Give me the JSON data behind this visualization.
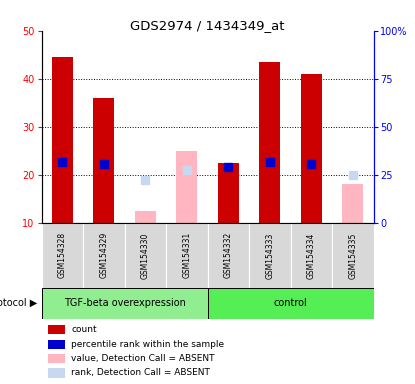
{
  "title": "GDS2974 / 1434349_at",
  "samples": [
    "GSM154328",
    "GSM154329",
    "GSM154330",
    "GSM154331",
    "GSM154332",
    "GSM154333",
    "GSM154334",
    "GSM154335"
  ],
  "present_count": [
    44.5,
    36.0,
    null,
    null,
    22.5,
    43.5,
    41.0,
    null
  ],
  "present_rank": [
    31.5,
    30.5,
    null,
    null,
    29.0,
    31.5,
    30.5,
    null
  ],
  "absent_count": [
    null,
    null,
    12.5,
    25.0,
    null,
    null,
    null,
    18.0
  ],
  "absent_rank": [
    null,
    null,
    22.0,
    27.5,
    null,
    null,
    null,
    25.0
  ],
  "ylim_left": [
    10,
    50
  ],
  "ylim_right": [
    0,
    100
  ],
  "yticks_left": [
    10,
    20,
    30,
    40,
    50
  ],
  "yticks_right": [
    0,
    25,
    50,
    75,
    100
  ],
  "ytick_labels_right": [
    "0",
    "25",
    "50",
    "75",
    "100%"
  ],
  "left_axis_color": "red",
  "right_axis_color": "blue",
  "bar_width": 0.5,
  "marker_size": 6,
  "absent_count_color": "#ffb6c1",
  "absent_rank_color": "#c8d8f0",
  "present_count_color": "#cc0000",
  "present_rank_color": "#0000cc",
  "tgf_group_color": "#90EE90",
  "ctrl_group_color": "#55EE55",
  "sample_box_color": "#d8d8d8",
  "legend_labels": [
    "count",
    "percentile rank within the sample",
    "value, Detection Call = ABSENT",
    "rank, Detection Call = ABSENT"
  ]
}
